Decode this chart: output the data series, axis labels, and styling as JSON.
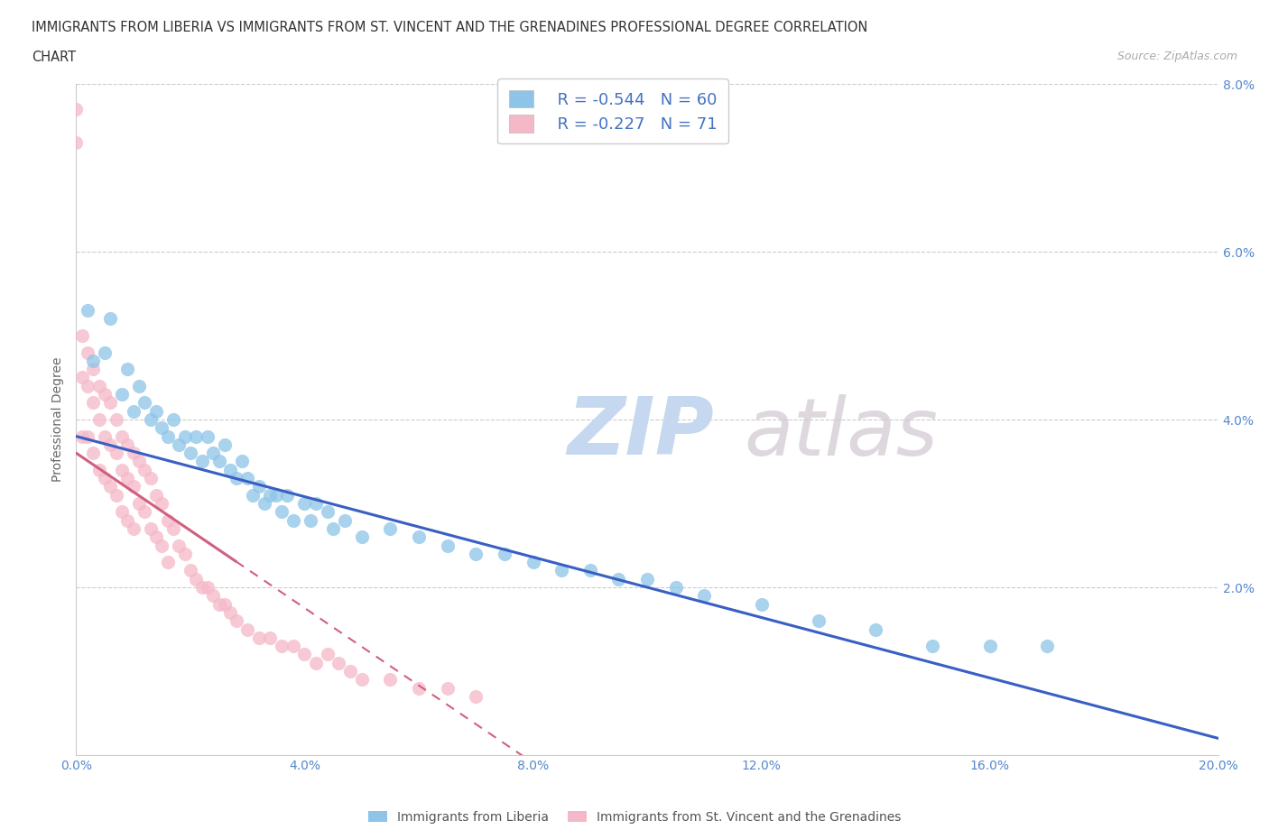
{
  "title_line1": "IMMIGRANTS FROM LIBERIA VS IMMIGRANTS FROM ST. VINCENT AND THE GRENADINES PROFESSIONAL DEGREE CORRELATION",
  "title_line2": "CHART",
  "source": "Source: ZipAtlas.com",
  "ylabel": "Professional Degree",
  "xmin": 0.0,
  "xmax": 0.2,
  "ymin": 0.0,
  "ymax": 0.08,
  "xtick_vals": [
    0.0,
    0.04,
    0.08,
    0.12,
    0.16,
    0.2
  ],
  "xtick_labels": [
    "0.0%",
    "4.0%",
    "8.0%",
    "12.0%",
    "16.0%",
    "20.0%"
  ],
  "ytick_vals": [
    0.0,
    0.02,
    0.04,
    0.06,
    0.08
  ],
  "ytick_labels": [
    "",
    "2.0%",
    "4.0%",
    "6.0%",
    "8.0%"
  ],
  "legend_R1": "R = -0.544",
  "legend_N1": "N = 60",
  "legend_R2": "R = -0.227",
  "legend_N2": "N = 71",
  "color_liberia": "#8dc4e8",
  "color_svg": "#f5b8c8",
  "trendline_liberia": "#3a5fc4",
  "trendline_svg": "#d06080",
  "watermark_zip": "ZIP",
  "watermark_atlas": "atlas",
  "lib_x": [
    0.002,
    0.003,
    0.005,
    0.006,
    0.008,
    0.009,
    0.01,
    0.011,
    0.012,
    0.013,
    0.014,
    0.015,
    0.016,
    0.017,
    0.018,
    0.019,
    0.02,
    0.021,
    0.022,
    0.023,
    0.024,
    0.025,
    0.026,
    0.027,
    0.028,
    0.029,
    0.03,
    0.031,
    0.032,
    0.033,
    0.034,
    0.035,
    0.036,
    0.037,
    0.038,
    0.04,
    0.041,
    0.042,
    0.044,
    0.045,
    0.047,
    0.05,
    0.055,
    0.06,
    0.065,
    0.07,
    0.075,
    0.08,
    0.085,
    0.09,
    0.095,
    0.1,
    0.105,
    0.11,
    0.12,
    0.13,
    0.14,
    0.15,
    0.16,
    0.17
  ],
  "lib_y": [
    0.053,
    0.047,
    0.048,
    0.052,
    0.043,
    0.046,
    0.041,
    0.044,
    0.042,
    0.04,
    0.041,
    0.039,
    0.038,
    0.04,
    0.037,
    0.038,
    0.036,
    0.038,
    0.035,
    0.038,
    0.036,
    0.035,
    0.037,
    0.034,
    0.033,
    0.035,
    0.033,
    0.031,
    0.032,
    0.03,
    0.031,
    0.031,
    0.029,
    0.031,
    0.028,
    0.03,
    0.028,
    0.03,
    0.029,
    0.027,
    0.028,
    0.026,
    0.027,
    0.026,
    0.025,
    0.024,
    0.024,
    0.023,
    0.022,
    0.022,
    0.021,
    0.021,
    0.02,
    0.019,
    0.018,
    0.016,
    0.015,
    0.013,
    0.013,
    0.013
  ],
  "svg_x": [
    0.0,
    0.0,
    0.001,
    0.001,
    0.001,
    0.002,
    0.002,
    0.002,
    0.003,
    0.003,
    0.003,
    0.004,
    0.004,
    0.004,
    0.005,
    0.005,
    0.005,
    0.006,
    0.006,
    0.006,
    0.007,
    0.007,
    0.007,
    0.008,
    0.008,
    0.008,
    0.009,
    0.009,
    0.009,
    0.01,
    0.01,
    0.01,
    0.011,
    0.011,
    0.012,
    0.012,
    0.013,
    0.013,
    0.014,
    0.014,
    0.015,
    0.015,
    0.016,
    0.016,
    0.017,
    0.018,
    0.019,
    0.02,
    0.021,
    0.022,
    0.023,
    0.024,
    0.025,
    0.026,
    0.027,
    0.028,
    0.03,
    0.032,
    0.034,
    0.036,
    0.038,
    0.04,
    0.042,
    0.044,
    0.046,
    0.048,
    0.05,
    0.055,
    0.06,
    0.065,
    0.07
  ],
  "svg_y": [
    0.077,
    0.073,
    0.05,
    0.045,
    0.038,
    0.048,
    0.044,
    0.038,
    0.046,
    0.042,
    0.036,
    0.044,
    0.04,
    0.034,
    0.043,
    0.038,
    0.033,
    0.042,
    0.037,
    0.032,
    0.04,
    0.036,
    0.031,
    0.038,
    0.034,
    0.029,
    0.037,
    0.033,
    0.028,
    0.036,
    0.032,
    0.027,
    0.035,
    0.03,
    0.034,
    0.029,
    0.033,
    0.027,
    0.031,
    0.026,
    0.03,
    0.025,
    0.028,
    0.023,
    0.027,
    0.025,
    0.024,
    0.022,
    0.021,
    0.02,
    0.02,
    0.019,
    0.018,
    0.018,
    0.017,
    0.016,
    0.015,
    0.014,
    0.014,
    0.013,
    0.013,
    0.012,
    0.011,
    0.012,
    0.011,
    0.01,
    0.009,
    0.009,
    0.008,
    0.008,
    0.007
  ],
  "lib_trend_x0": 0.0,
  "lib_trend_x1": 0.2,
  "lib_trend_y0": 0.038,
  "lib_trend_y1": 0.002,
  "svg_trend_x0": 0.0,
  "svg_trend_x1": 0.065,
  "svg_trend_y0": 0.036,
  "svg_trend_y1": 0.006
}
